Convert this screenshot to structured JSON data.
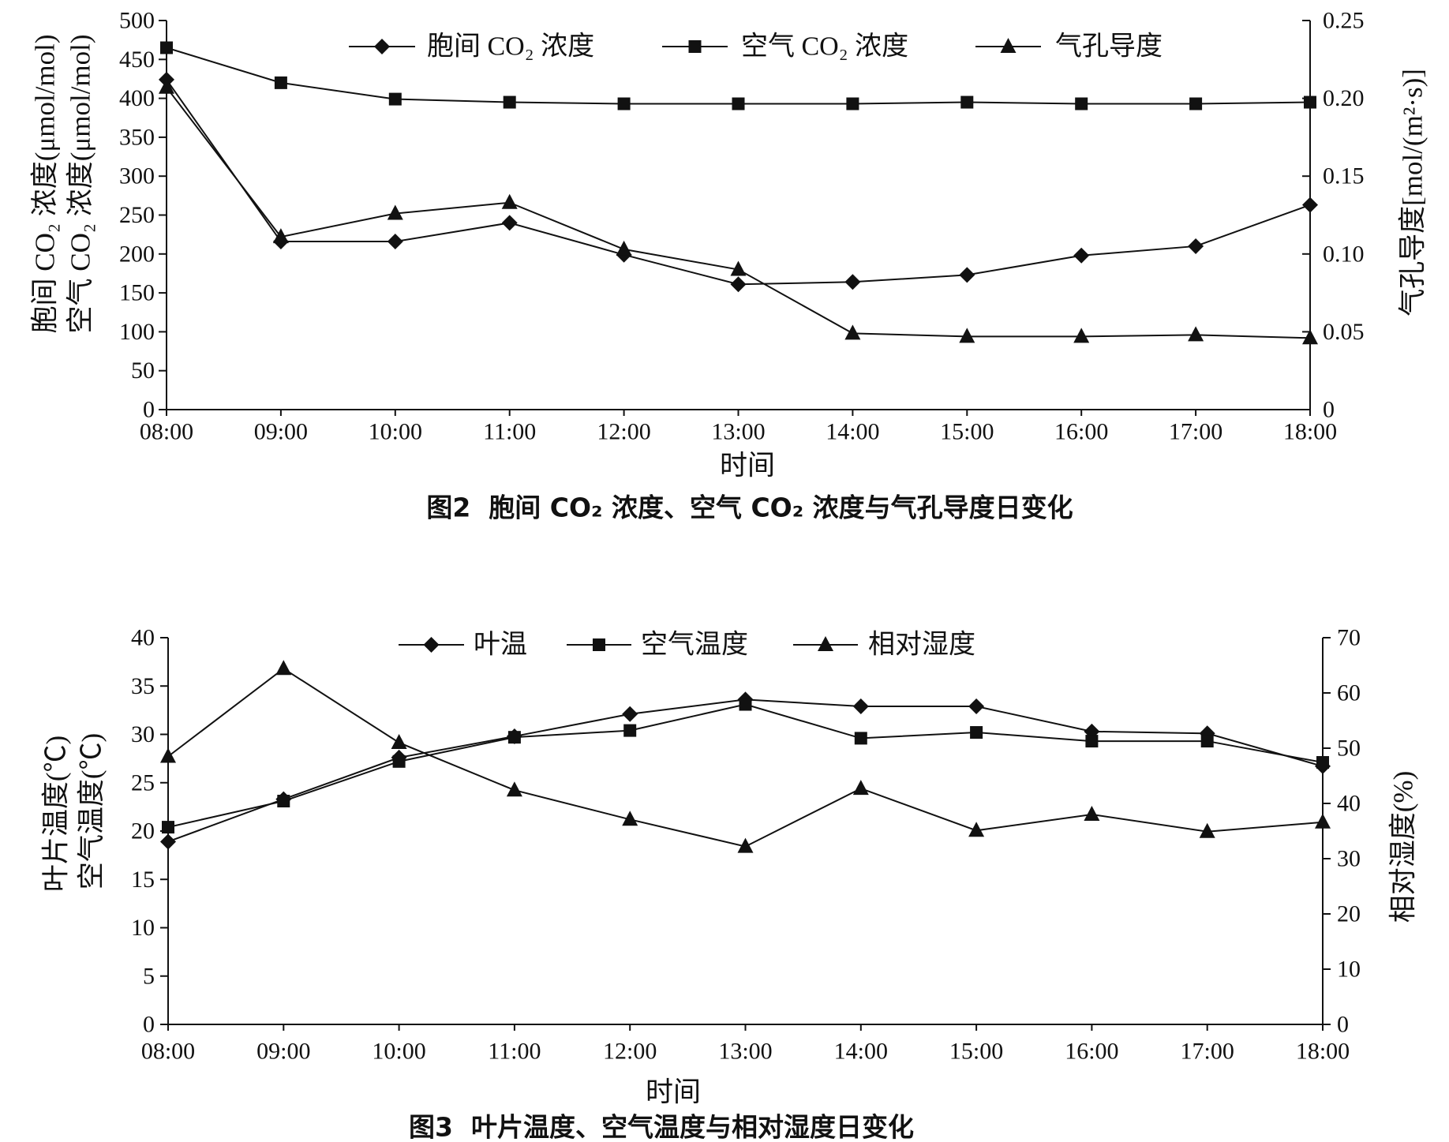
{
  "colors": {
    "ink": "#111111",
    "background": "#ffffff"
  },
  "chart_data": [
    {
      "type": "line",
      "title": "图2  胞间 CO₂ 浓度、空气 CO₂ 浓度与气孔导度日变化",
      "xlabel": "时间",
      "ylabel": [
        "胞间 CO₂ 浓度(μmol/mol)",
        "空气 CO₂ 浓度(μmol/mol)"
      ],
      "y2label": "气孔导度[mol/(m²·s)]",
      "categories": [
        "08:00",
        "09:00",
        "10:00",
        "11:00",
        "12:00",
        "13:00",
        "14:00",
        "15:00",
        "16:00",
        "17:00",
        "18:00"
      ],
      "ylim": [
        0,
        500
      ],
      "yticks": [
        "0",
        "50",
        "100",
        "150",
        "200",
        "250",
        "300",
        "350",
        "400",
        "450",
        "500"
      ],
      "y2lim": [
        0,
        0.25
      ],
      "y2ticks": [
        "0",
        "0.05",
        "0.10",
        "0.15",
        "0.20",
        "0.25"
      ],
      "grid": false,
      "legend": "top",
      "series": [
        {
          "name": "胞间 CO₂ 浓度",
          "axis": "left",
          "marker": "diamond",
          "color": "#111111",
          "values": [
            424,
            216,
            216,
            240,
            199,
            161,
            164,
            173,
            198,
            210,
            263
          ]
        },
        {
          "name": "空气 CO₂ 浓度",
          "axis": "left",
          "marker": "square",
          "color": "#111111",
          "values": [
            465,
            420,
            399,
            395,
            393,
            393,
            393,
            395,
            393,
            393,
            395
          ]
        },
        {
          "name": "气孔导度",
          "axis": "right",
          "marker": "triangle",
          "color": "#111111",
          "values": [
            0.207,
            0.111,
            0.126,
            0.133,
            0.103,
            0.09,
            0.049,
            0.047,
            0.047,
            0.048,
            0.046
          ]
        }
      ]
    },
    {
      "type": "line",
      "title": "图3  叶片温度、空气温度与相对湿度日变化",
      "xlabel": "时间",
      "ylabel": [
        "叶片温度(℃)",
        "空气温度(℃)"
      ],
      "y2label": "相对湿度(%)",
      "categories": [
        "08:00",
        "09:00",
        "10:00",
        "11:00",
        "12:00",
        "13:00",
        "14:00",
        "15:00",
        "16:00",
        "17:00",
        "18:00"
      ],
      "ylim": [
        0,
        40
      ],
      "yticks": [
        "0",
        "5",
        "10",
        "15",
        "20",
        "25",
        "30",
        "35",
        "40"
      ],
      "y2lim": [
        0,
        70
      ],
      "y2ticks": [
        "0",
        "10",
        "20",
        "30",
        "40",
        "50",
        "60",
        "70"
      ],
      "grid": false,
      "legend": "top",
      "series": [
        {
          "name": "叶温",
          "axis": "left",
          "marker": "diamond",
          "color": "#111111",
          "values": [
            18.9,
            23.3,
            27.6,
            29.8,
            32.1,
            33.6,
            32.9,
            32.9,
            30.3,
            30.1,
            26.7
          ]
        },
        {
          "name": "空气温度",
          "axis": "left",
          "marker": "square",
          "color": "#111111",
          "values": [
            20.4,
            23.1,
            27.2,
            29.7,
            30.4,
            33.1,
            29.6,
            30.2,
            29.3,
            29.3,
            27.1
          ]
        },
        {
          "name": "相对湿度",
          "axis": "right",
          "marker": "triangle",
          "color": "#111111",
          "values": [
            48.5,
            64.4,
            51.0,
            42.4,
            37.1,
            32.2,
            42.7,
            35.1,
            38.0,
            34.9,
            36.6
          ]
        }
      ]
    }
  ]
}
